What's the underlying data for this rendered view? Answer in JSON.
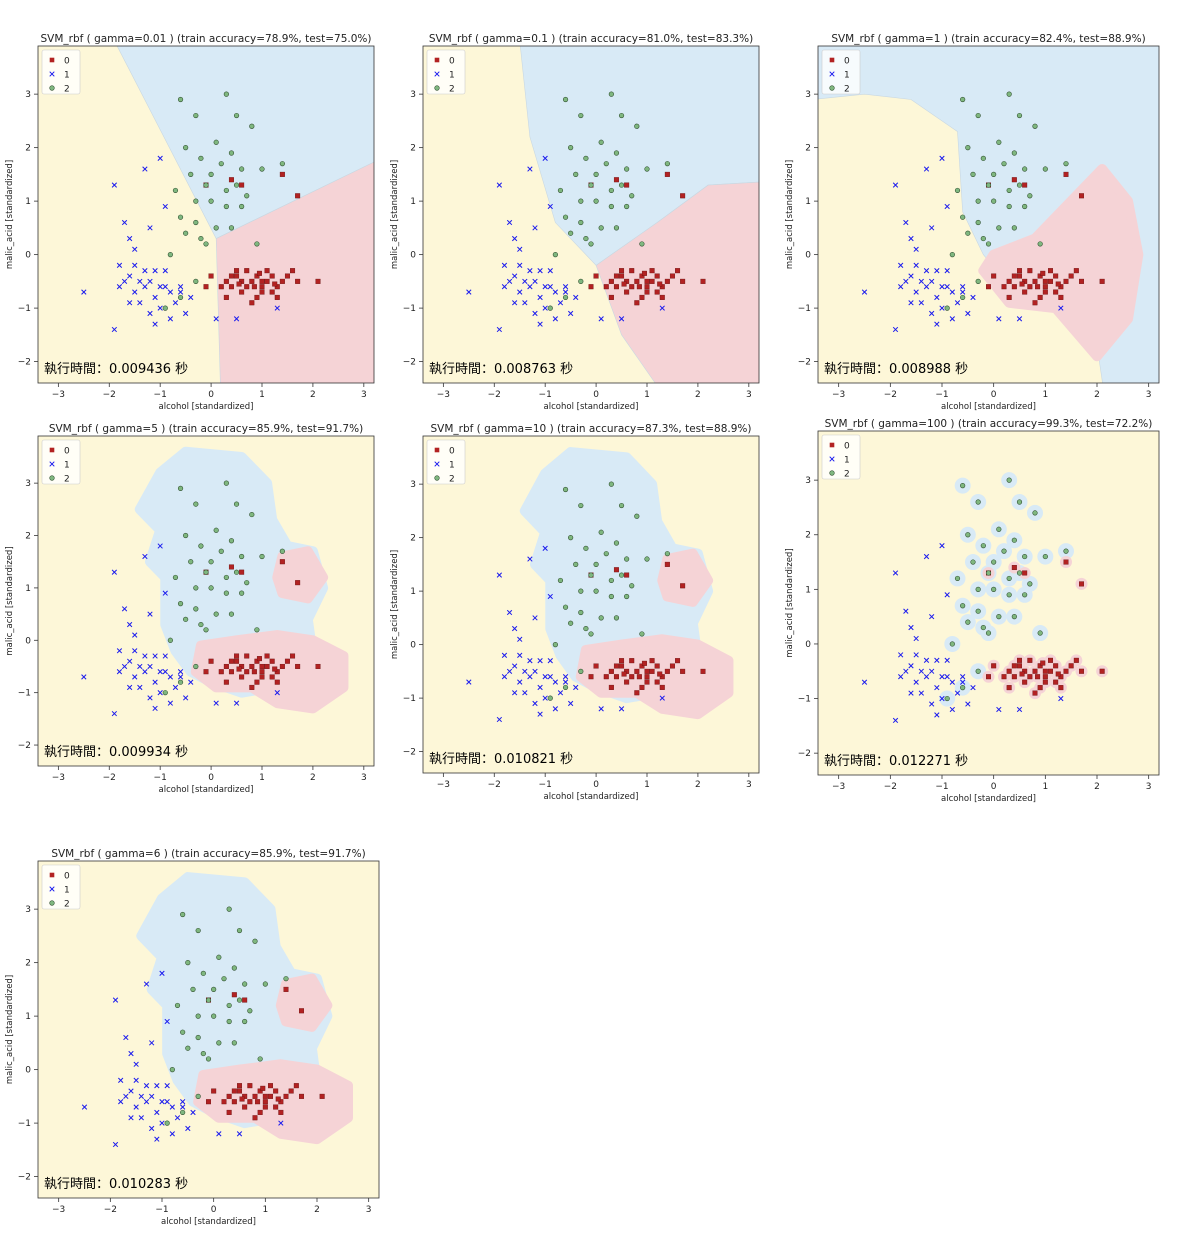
{
  "chart_data": [
    {
      "type": "scatter",
      "title": "SVM_rbf ( gamma=0.01 ) (train accuracy=78.9%, test=75.0%)",
      "xlabel": "alcohol [standardized]",
      "ylabel": "malic_acid [standardized]",
      "xlim": [
        -3.4,
        3.2
      ],
      "ylim": [
        -2.4,
        3.9
      ],
      "xticks": [
        -3,
        -2,
        -1,
        0,
        1,
        2,
        3
      ],
      "yticks": [
        -2,
        -1,
        0,
        1,
        2,
        3
      ],
      "legend": [
        "0",
        "1",
        "2"
      ],
      "legend_position": "top-left",
      "annotation": "執行時間：0.009436 秒",
      "regions": "linear"
    },
    {
      "type": "scatter",
      "title": "SVM_rbf ( gamma=0.1 ) (train accuracy=81.0%, test=83.3%)",
      "xlabel": "alcohol [standardized]",
      "ylabel": "malic_acid [standardized]",
      "xlim": [
        -3.4,
        3.2
      ],
      "ylim": [
        -2.4,
        3.9
      ],
      "xticks": [
        -3,
        -2,
        -1,
        0,
        1,
        2,
        3
      ],
      "yticks": [
        -2,
        -1,
        0,
        1,
        2,
        3
      ],
      "legend": [
        "0",
        "1",
        "2"
      ],
      "legend_position": "top-left",
      "annotation": "執行時間：0.008763 秒",
      "regions": "curved"
    },
    {
      "type": "scatter",
      "title": "SVM_rbf ( gamma=1 ) (train accuracy=82.4%, test=88.9%)",
      "xlabel": "alcohol [standardized]",
      "ylabel": "malic_acid [standardized]",
      "xlim": [
        -3.4,
        3.2
      ],
      "ylim": [
        -2.4,
        3.9
      ],
      "xticks": [
        -3,
        -2,
        -1,
        0,
        1,
        2,
        3
      ],
      "yticks": [
        -2,
        -1,
        0,
        1,
        2,
        3
      ],
      "legend": [
        "0",
        "1",
        "2"
      ],
      "legend_position": "top-left",
      "annotation": "執行時間：0.008988 秒",
      "regions": "curved2"
    },
    {
      "type": "scatter",
      "title": "SVM_rbf ( gamma=5 ) (train accuracy=85.9%, test=91.7%)",
      "xlabel": "alcohol [standardized]",
      "ylabel": "malic_acid [standardized]",
      "xlim": [
        -3.4,
        3.2
      ],
      "ylim": [
        -2.4,
        3.9
      ],
      "xticks": [
        -3,
        -2,
        -1,
        0,
        1,
        2,
        3
      ],
      "yticks": [
        -2,
        -1,
        0,
        1,
        2,
        3
      ],
      "legend": [
        "0",
        "1",
        "2"
      ],
      "legend_position": "top-left",
      "annotation": "執行時間：0.009934 秒",
      "regions": "blob"
    },
    {
      "type": "scatter",
      "title": "SVM_rbf ( gamma=10 ) (train accuracy=87.3%, test=88.9%)",
      "xlabel": "alcohol [standardized]",
      "ylabel": "malic_acid [standardized]",
      "xlim": [
        -3.4,
        3.2
      ],
      "ylim": [
        -2.4,
        3.9
      ],
      "xticks": [
        -3,
        -2,
        -1,
        0,
        1,
        2,
        3
      ],
      "yticks": [
        -2,
        -1,
        0,
        1,
        2,
        3
      ],
      "legend": [
        "0",
        "1",
        "2"
      ],
      "legend_position": "top-left",
      "annotation": "執行時間：0.010821 秒",
      "regions": "blob"
    },
    {
      "type": "scatter",
      "title": "SVM_rbf ( gamma=100 ) (train accuracy=99.3%, test=72.2%)",
      "xlabel": "alcohol [standardized]",
      "ylabel": "malic_acid [standardized]",
      "xlim": [
        -3.4,
        3.2
      ],
      "ylim": [
        -2.4,
        3.9
      ],
      "xticks": [
        -3,
        -2,
        -1,
        0,
        1,
        2,
        3
      ],
      "yticks": [
        -2,
        -1,
        0,
        1,
        2,
        3
      ],
      "legend": [
        "0",
        "1",
        "2"
      ],
      "legend_position": "top-left",
      "annotation": "執行時間：0.012271 秒",
      "regions": "points"
    },
    {
      "type": "scatter",
      "title": "SVM_rbf ( gamma=6 ) (train accuracy=85.9%, test=91.7%)",
      "xlabel": "alcohol [standardized]",
      "ylabel": "malic_acid [standardized]",
      "xlim": [
        -3.4,
        3.2
      ],
      "ylim": [
        -2.4,
        3.9
      ],
      "xticks": [
        -3,
        -2,
        -1,
        0,
        1,
        2,
        3
      ],
      "yticks": [
        -2,
        -1,
        0,
        1,
        2,
        3
      ],
      "legend": [
        "0",
        "1",
        "2"
      ],
      "legend_position": "top-left",
      "annotation": "執行時間：0.010283 秒",
      "regions": "blob"
    }
  ],
  "points": {
    "class0": [
      [
        0.2,
        -0.6
      ],
      [
        0.3,
        -0.5
      ],
      [
        0.4,
        -0.6
      ],
      [
        0.5,
        -0.4
      ],
      [
        0.6,
        -0.5
      ],
      [
        0.7,
        -0.6
      ],
      [
        0.8,
        -0.5
      ],
      [
        0.9,
        -0.4
      ],
      [
        1.0,
        -0.6
      ],
      [
        1.1,
        -0.5
      ],
      [
        1.2,
        -0.4
      ],
      [
        1.3,
        -0.6
      ],
      [
        1.4,
        -0.5
      ],
      [
        1.5,
        -0.4
      ],
      [
        1.6,
        -0.3
      ],
      [
        1.7,
        -0.5
      ],
      [
        0.9,
        -0.8
      ],
      [
        1.0,
        -0.7
      ],
      [
        1.2,
        -0.7
      ],
      [
        0.8,
        -0.9
      ],
      [
        0.6,
        -0.7
      ],
      [
        1.3,
        -0.8
      ],
      [
        0.5,
        -0.3
      ],
      [
        0.7,
        -0.3
      ],
      [
        2.1,
        -0.5
      ],
      [
        1.1,
        -0.3
      ],
      [
        0.4,
        -0.4
      ],
      [
        0.3,
        -0.8
      ],
      [
        0.0,
        -0.4
      ],
      [
        -0.1,
        -0.6
      ],
      [
        1.4,
        1.5
      ],
      [
        1.7,
        1.1
      ],
      [
        0.6,
        1.3
      ],
      [
        0.4,
        1.4
      ],
      [
        -0.1,
        1.3
      ],
      [
        1.0,
        -0.5
      ],
      [
        0.85,
        -0.6
      ],
      [
        1.25,
        -0.55
      ],
      [
        0.55,
        -0.55
      ],
      [
        0.95,
        -0.35
      ]
    ],
    "class1": [
      [
        -2.5,
        -0.7
      ],
      [
        -1.9,
        -1.4
      ],
      [
        -1.8,
        -0.6
      ],
      [
        -1.6,
        -0.4
      ],
      [
        -1.5,
        -0.2
      ],
      [
        -1.4,
        -0.9
      ],
      [
        -1.3,
        -0.6
      ],
      [
        -1.2,
        -1.1
      ],
      [
        -1.1,
        -0.8
      ],
      [
        -1.0,
        -1.0
      ],
      [
        -0.9,
        -0.6
      ],
      [
        -0.8,
        -1.2
      ],
      [
        -0.7,
        -0.9
      ],
      [
        -0.6,
        -0.7
      ],
      [
        -0.5,
        -1.1
      ],
      [
        -0.4,
        -0.8
      ],
      [
        -1.3,
        1.6
      ],
      [
        -1.0,
        1.8
      ],
      [
        -1.1,
        -0.3
      ],
      [
        -0.9,
        -0.3
      ],
      [
        -1.8,
        -0.2
      ],
      [
        -1.7,
        -0.5
      ],
      [
        -1.6,
        -0.9
      ],
      [
        -1.5,
        -0.7
      ],
      [
        -1.4,
        -0.5
      ],
      [
        -1.2,
        -0.5
      ],
      [
        -1.0,
        -0.6
      ],
      [
        -0.8,
        -0.7
      ],
      [
        -1.9,
        1.3
      ],
      [
        -1.7,
        0.6
      ],
      [
        -1.2,
        0.5
      ],
      [
        -0.9,
        0.9
      ],
      [
        -1.5,
        0.1
      ],
      [
        -1.3,
        -0.3
      ],
      [
        -1.1,
        -1.3
      ],
      [
        0.5,
        -1.2
      ],
      [
        1.3,
        -1.0
      ],
      [
        0.1,
        -1.2
      ],
      [
        -0.6,
        -0.6
      ],
      [
        -1.6,
        0.3
      ]
    ],
    "class2": [
      [
        -0.6,
        2.9
      ],
      [
        0.3,
        3.0
      ],
      [
        -0.3,
        2.6
      ],
      [
        0.5,
        2.6
      ],
      [
        0.8,
        2.4
      ],
      [
        -0.5,
        2.0
      ],
      [
        0.1,
        2.1
      ],
      [
        0.4,
        1.9
      ],
      [
        -0.2,
        1.8
      ],
      [
        0.2,
        1.7
      ],
      [
        0.6,
        1.6
      ],
      [
        1.0,
        1.6
      ],
      [
        -0.4,
        1.5
      ],
      [
        -0.1,
        1.3
      ],
      [
        0.3,
        1.2
      ],
      [
        0.5,
        1.3
      ],
      [
        -0.3,
        1.0
      ],
      [
        0.0,
        1.0
      ],
      [
        0.3,
        0.9
      ],
      [
        0.6,
        0.9
      ],
      [
        -0.6,
        0.7
      ],
      [
        -0.3,
        0.6
      ],
      [
        0.1,
        0.5
      ],
      [
        0.4,
        0.5
      ],
      [
        -0.5,
        0.4
      ],
      [
        -0.2,
        0.3
      ],
      [
        0.9,
        0.2
      ],
      [
        -0.8,
        0.0
      ],
      [
        -0.3,
        -0.5
      ],
      [
        -0.6,
        -0.8
      ],
      [
        -0.9,
        -1.0
      ],
      [
        0.0,
        1.5
      ],
      [
        0.7,
        1.1
      ],
      [
        -0.1,
        0.2
      ],
      [
        1.4,
        1.7
      ],
      [
        -0.7,
        1.2
      ]
    ]
  },
  "colors": {
    "region0": "#f5d3d6",
    "region1": "#d8eaf6",
    "region2": "#fdf7d8",
    "class0": "#b22222",
    "class1": "#1a1aee",
    "class2": "#7fb77f"
  }
}
